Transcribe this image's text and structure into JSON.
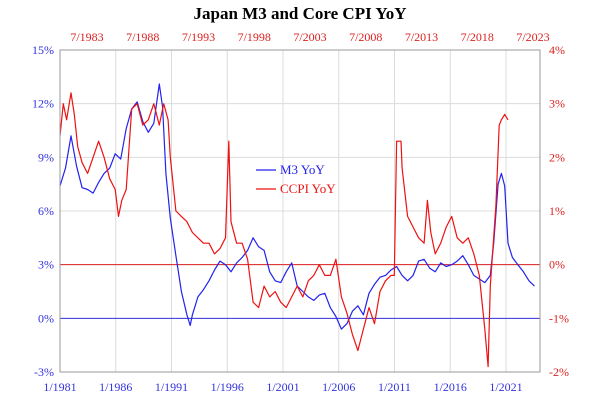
{
  "chart_data": {
    "type": "line",
    "title": "Japan M3 and Core CPI YoY",
    "bottom_x_ticks": [
      "1/1981",
      "1/1986",
      "1/1991",
      "1/1996",
      "1/2001",
      "1/2006",
      "1/2011",
      "1/2016",
      "1/2021"
    ],
    "top_x_ticks": [
      "7/1983",
      "7/1988",
      "7/1993",
      "7/1998",
      "7/2003",
      "7/2008",
      "7/2013",
      "7/2018",
      "7/2023"
    ],
    "left_axis": {
      "ticks": [
        "15%",
        "12%",
        "9%",
        "6%",
        "3%",
        "0%",
        "-3%"
      ],
      "range": [
        -3,
        15
      ],
      "color": "#3333dd"
    },
    "right_axis": {
      "ticks": [
        "4%",
        "3%",
        "2%",
        "1%",
        "0%",
        "-1%",
        "-2%"
      ],
      "range": [
        -2,
        4
      ],
      "color": "#dd2222"
    },
    "x_range": [
      1981.0,
      2024.5
    ],
    "grid": true,
    "legend_position": "center-left",
    "reference_lines": [
      {
        "axis": "left",
        "value": 0,
        "color": "#3333dd"
      },
      {
        "axis": "right",
        "value": 0,
        "color": "#dd2222"
      }
    ],
    "series": [
      {
        "name": "M3 YoY",
        "axis": "left",
        "color": "#2222ee",
        "points": [
          [
            1981.0,
            7.4
          ],
          [
            1981.5,
            8.4
          ],
          [
            1982.0,
            10.2
          ],
          [
            1982.5,
            8.5
          ],
          [
            1983.0,
            7.3
          ],
          [
            1983.5,
            7.2
          ],
          [
            1984.0,
            7.0
          ],
          [
            1984.5,
            7.6
          ],
          [
            1985.0,
            8.1
          ],
          [
            1985.5,
            8.4
          ],
          [
            1986.0,
            9.2
          ],
          [
            1986.5,
            8.9
          ],
          [
            1987.0,
            10.6
          ],
          [
            1987.5,
            11.7
          ],
          [
            1988.0,
            12.1
          ],
          [
            1988.5,
            11.0
          ],
          [
            1989.0,
            10.4
          ],
          [
            1989.5,
            10.9
          ],
          [
            1990.0,
            13.1
          ],
          [
            1990.3,
            11.8
          ],
          [
            1990.6,
            8.1
          ],
          [
            1991.0,
            5.6
          ],
          [
            1991.5,
            3.5
          ],
          [
            1992.0,
            1.5
          ],
          [
            1992.5,
            0.2
          ],
          [
            1992.8,
            -0.4
          ],
          [
            1993.0,
            0.2
          ],
          [
            1993.5,
            1.2
          ],
          [
            1994.0,
            1.6
          ],
          [
            1994.5,
            2.1
          ],
          [
            1995.0,
            2.7
          ],
          [
            1995.5,
            3.2
          ],
          [
            1996.0,
            3.0
          ],
          [
            1996.5,
            2.6
          ],
          [
            1997.0,
            3.1
          ],
          [
            1997.5,
            3.4
          ],
          [
            1998.0,
            3.8
          ],
          [
            1998.5,
            4.5
          ],
          [
            1999.0,
            4.0
          ],
          [
            1999.5,
            3.8
          ],
          [
            2000.0,
            2.6
          ],
          [
            2000.5,
            2.1
          ],
          [
            2001.0,
            2.0
          ],
          [
            2001.5,
            2.6
          ],
          [
            2002.0,
            3.1
          ],
          [
            2002.5,
            1.8
          ],
          [
            2003.0,
            1.5
          ],
          [
            2003.5,
            1.2
          ],
          [
            2004.0,
            1.0
          ],
          [
            2004.5,
            1.3
          ],
          [
            2005.0,
            1.4
          ],
          [
            2005.5,
            0.6
          ],
          [
            2006.0,
            0.1
          ],
          [
            2006.5,
            -0.6
          ],
          [
            2007.0,
            -0.3
          ],
          [
            2007.5,
            0.4
          ],
          [
            2008.0,
            0.7
          ],
          [
            2008.5,
            0.2
          ],
          [
            2009.0,
            1.4
          ],
          [
            2009.5,
            1.9
          ],
          [
            2010.0,
            2.3
          ],
          [
            2010.5,
            2.4
          ],
          [
            2011.0,
            2.7
          ],
          [
            2011.5,
            2.9
          ],
          [
            2012.0,
            2.4
          ],
          [
            2012.5,
            2.1
          ],
          [
            2013.0,
            2.4
          ],
          [
            2013.5,
            3.2
          ],
          [
            2014.0,
            3.3
          ],
          [
            2014.5,
            2.8
          ],
          [
            2015.0,
            2.6
          ],
          [
            2015.5,
            3.1
          ],
          [
            2016.0,
            2.9
          ],
          [
            2016.5,
            3.0
          ],
          [
            2017.0,
            3.2
          ],
          [
            2017.5,
            3.5
          ],
          [
            2018.0,
            3.0
          ],
          [
            2018.5,
            2.4
          ],
          [
            2019.0,
            2.2
          ],
          [
            2019.5,
            2.0
          ],
          [
            2020.0,
            2.4
          ],
          [
            2020.3,
            4.2
          ],
          [
            2020.7,
            7.5
          ],
          [
            2021.0,
            8.1
          ],
          [
            2021.3,
            7.4
          ],
          [
            2021.6,
            4.2
          ],
          [
            2022.0,
            3.4
          ],
          [
            2022.5,
            3.0
          ],
          [
            2023.0,
            2.6
          ],
          [
            2023.5,
            2.1
          ],
          [
            2024.0,
            1.8
          ]
        ]
      },
      {
        "name": "CCPI YoY",
        "axis": "right",
        "color": "#ee1111",
        "points": [
          [
            1981.0,
            2.4
          ],
          [
            1981.3,
            3.0
          ],
          [
            1981.6,
            2.7
          ],
          [
            1982.0,
            3.2
          ],
          [
            1982.3,
            2.8
          ],
          [
            1982.6,
            2.2
          ],
          [
            1983.0,
            1.9
          ],
          [
            1983.5,
            1.7
          ],
          [
            1984.0,
            2.0
          ],
          [
            1984.5,
            2.3
          ],
          [
            1985.0,
            2.0
          ],
          [
            1985.5,
            1.6
          ],
          [
            1986.0,
            1.4
          ],
          [
            1986.3,
            0.9
          ],
          [
            1986.6,
            1.2
          ],
          [
            1987.0,
            1.4
          ],
          [
            1987.5,
            2.9
          ],
          [
            1988.0,
            3.0
          ],
          [
            1988.5,
            2.6
          ],
          [
            1989.0,
            2.7
          ],
          [
            1989.5,
            3.0
          ],
          [
            1990.0,
            2.6
          ],
          [
            1990.4,
            3.0
          ],
          [
            1990.8,
            2.7
          ],
          [
            1991.0,
            2.0
          ],
          [
            1991.5,
            1.0
          ],
          [
            1992.0,
            0.9
          ],
          [
            1992.5,
            0.8
          ],
          [
            1993.0,
            0.6
          ],
          [
            1993.5,
            0.5
          ],
          [
            1994.0,
            0.4
          ],
          [
            1994.5,
            0.4
          ],
          [
            1995.0,
            0.2
          ],
          [
            1995.5,
            0.3
          ],
          [
            1996.0,
            0.5
          ],
          [
            1996.3,
            2.3
          ],
          [
            1996.5,
            0.8
          ],
          [
            1997.0,
            0.4
          ],
          [
            1997.5,
            0.4
          ],
          [
            1998.0,
            0.1
          ],
          [
            1998.5,
            -0.7
          ],
          [
            1999.0,
            -0.8
          ],
          [
            1999.5,
            -0.4
          ],
          [
            2000.0,
            -0.6
          ],
          [
            2000.5,
            -0.5
          ],
          [
            2001.0,
            -0.7
          ],
          [
            2001.5,
            -0.8
          ],
          [
            2002.0,
            -0.6
          ],
          [
            2002.5,
            -0.4
          ],
          [
            2003.0,
            -0.6
          ],
          [
            2003.5,
            -0.3
          ],
          [
            2004.0,
            -0.2
          ],
          [
            2004.5,
            0.0
          ],
          [
            2005.0,
            -0.2
          ],
          [
            2005.5,
            -0.2
          ],
          [
            2006.0,
            0.1
          ],
          [
            2006.5,
            -0.6
          ],
          [
            2007.0,
            -0.9
          ],
          [
            2007.5,
            -1.3
          ],
          [
            2008.0,
            -1.6
          ],
          [
            2008.5,
            -1.2
          ],
          [
            2009.0,
            -0.8
          ],
          [
            2009.5,
            -1.1
          ],
          [
            2010.0,
            -0.5
          ],
          [
            2010.5,
            -0.3
          ],
          [
            2011.0,
            -0.2
          ],
          [
            2011.3,
            -0.2
          ],
          [
            2011.5,
            2.3
          ],
          [
            2011.9,
            2.3
          ],
          [
            2012.0,
            1.8
          ],
          [
            2012.5,
            0.9
          ],
          [
            2013.0,
            0.7
          ],
          [
            2013.5,
            0.5
          ],
          [
            2014.0,
            0.4
          ],
          [
            2014.3,
            1.2
          ],
          [
            2014.6,
            0.6
          ],
          [
            2015.0,
            0.2
          ],
          [
            2015.5,
            0.4
          ],
          [
            2016.0,
            0.7
          ],
          [
            2016.5,
            0.9
          ],
          [
            2017.0,
            0.5
          ],
          [
            2017.5,
            0.4
          ],
          [
            2018.0,
            0.5
          ],
          [
            2018.5,
            0.2
          ],
          [
            2019.0,
            -0.2
          ],
          [
            2019.5,
            -1.2
          ],
          [
            2019.8,
            -1.9
          ],
          [
            2020.0,
            -0.4
          ],
          [
            2020.5,
            1.1
          ],
          [
            2020.8,
            2.6
          ],
          [
            2021.0,
            2.7
          ],
          [
            2021.3,
            2.8
          ],
          [
            2021.6,
            2.7
          ]
        ]
      }
    ]
  }
}
